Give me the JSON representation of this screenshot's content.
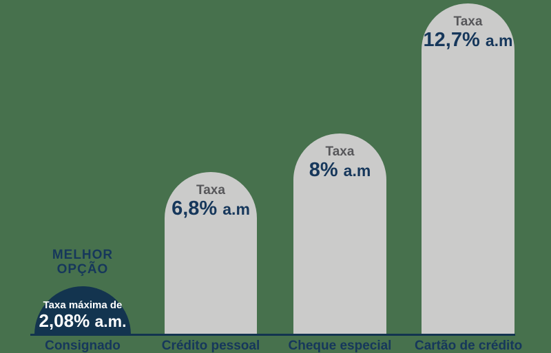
{
  "background": "#47714d",
  "colors": {
    "canvas_green": "#47714d",
    "highlight_navy": "#13344f",
    "text_navy": "#16375b",
    "bar_gray": "#cbcbca",
    "taxa_gray": "#57575a",
    "white": "#ffffff"
  },
  "best_option": {
    "line1": "MELHOR",
    "line2": "OPÇÃO"
  },
  "chart_data": {
    "type": "bar",
    "title": "",
    "xlabel": "",
    "ylabel": "",
    "unit": "% a.m.",
    "categories": [
      "Consignado",
      "Crédito pessoal",
      "Cheque especial",
      "Cartão de crédito"
    ],
    "values": [
      2.08,
      6.8,
      8,
      12.7
    ],
    "value_labels": [
      "2,08% a.m.",
      "6,8% a.m",
      "8% a.m",
      "12,7% a.m"
    ],
    "highlight_index": 0,
    "annotations": [
      "MELHOR OPÇÃO",
      "Taxa máxima de"
    ],
    "legend": "none",
    "grid": false,
    "bars": [
      {
        "category": "Consignado",
        "label": "Taxa máxima de",
        "number": "2,08%",
        "suffix": "a.m.",
        "value": 2.08,
        "highlight": true
      },
      {
        "category": "Crédito pessoal",
        "label": "Taxa",
        "number": "6,8%",
        "suffix": "a.m",
        "value": 6.8,
        "highlight": false
      },
      {
        "category": "Cheque especial",
        "label": "Taxa",
        "number": "8%",
        "suffix": "a.m",
        "value": 8,
        "highlight": false
      },
      {
        "category": "Cartão de crédito",
        "label": "Taxa",
        "number": "12,7%",
        "suffix": "a.m",
        "value": 12.7,
        "highlight": false
      }
    ]
  }
}
